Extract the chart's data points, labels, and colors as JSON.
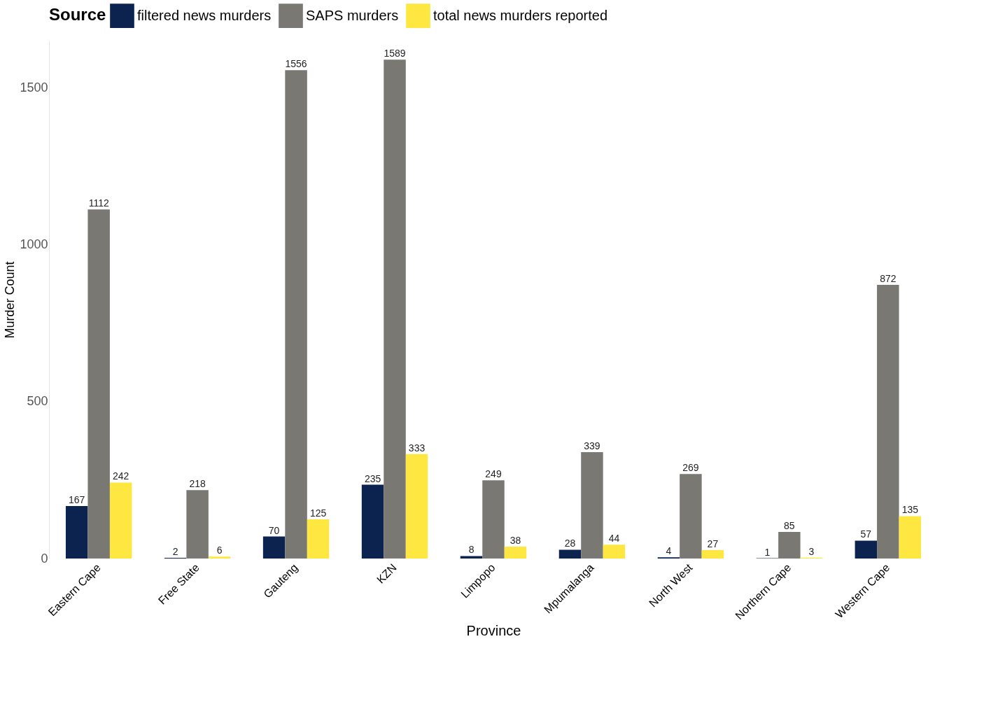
{
  "chart_data": {
    "type": "bar",
    "xlabel": "Province",
    "ylabel": "Murder Count",
    "legend_title": "Source",
    "categories": [
      "Eastern Cape",
      "Free State",
      "Gauteng",
      "KZN",
      "Limpopo",
      "Mpumalanga",
      "North West",
      "Northern Cape",
      "Western Cape"
    ],
    "series": [
      {
        "name": "filtered news murders",
        "color": "#0c2350",
        "values": [
          167,
          2,
          70,
          235,
          8,
          28,
          4,
          1,
          57
        ]
      },
      {
        "name": "SAPS murders",
        "color": "#7a7873",
        "values": [
          1112,
          218,
          1556,
          1589,
          249,
          339,
          269,
          85,
          872
        ]
      },
      {
        "name": "total news murders reported",
        "color": "#fde740",
        "values": [
          242,
          6,
          125,
          333,
          38,
          44,
          27,
          3,
          135
        ]
      }
    ],
    "ylim": [
      0,
      1650
    ],
    "yticks": [
      0,
      500,
      1000,
      1500
    ],
    "grid": false,
    "legend": "top",
    "data_labels": true
  }
}
